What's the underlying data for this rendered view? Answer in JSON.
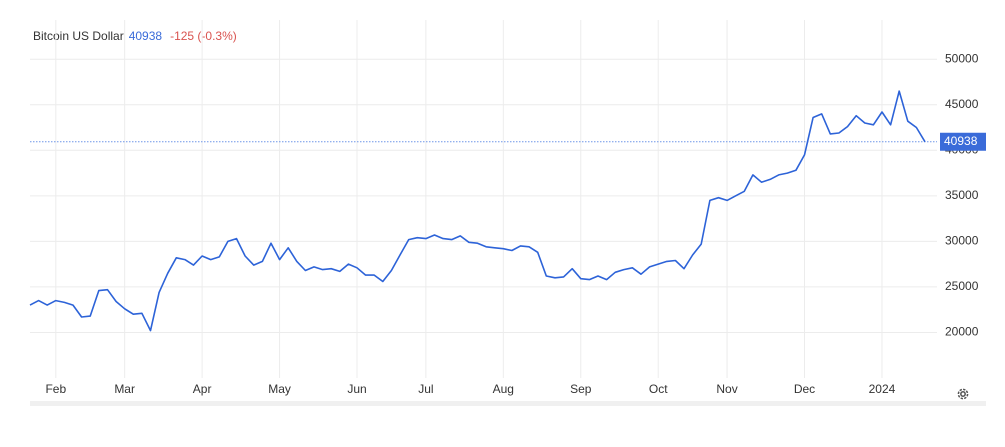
{
  "chart_data": {
    "type": "line",
    "title": "Bitcoin US Dollar",
    "change": "-125 (-0.3%)",
    "categories": [
      null,
      null,
      null,
      "Feb",
      null,
      null,
      null,
      null,
      null,
      null,
      null,
      "Mar",
      null,
      null,
      null,
      null,
      null,
      null,
      null,
      null,
      "Apr",
      null,
      null,
      null,
      null,
      null,
      null,
      null,
      null,
      "May",
      null,
      null,
      null,
      null,
      null,
      null,
      null,
      null,
      "Jun",
      null,
      null,
      null,
      null,
      null,
      null,
      null,
      "Jul",
      null,
      null,
      null,
      null,
      null,
      null,
      null,
      null,
      "Aug",
      null,
      null,
      null,
      null,
      null,
      null,
      null,
      null,
      "Sep",
      null,
      null,
      null,
      null,
      null,
      null,
      null,
      null,
      "Oct",
      null,
      null,
      null,
      null,
      null,
      null,
      null,
      "Nov",
      null,
      null,
      null,
      null,
      null,
      null,
      null,
      null,
      "Dec",
      null,
      null,
      null,
      null,
      null,
      null,
      null,
      null,
      "2024",
      null,
      null,
      null,
      null,
      null
    ],
    "values": [
      23000,
      23500,
      23000,
      23500,
      23300,
      23000,
      21700,
      21800,
      24600,
      24700,
      23400,
      22600,
      22000,
      22100,
      20200,
      24400,
      26500,
      28200,
      28000,
      27400,
      28400,
      28000,
      28300,
      30000,
      30300,
      28400,
      27400,
      27800,
      29800,
      28000,
      29300,
      27800,
      26800,
      27200,
      26900,
      27000,
      26700,
      27500,
      27100,
      26300,
      26300,
      25600,
      26800,
      28500,
      30200,
      30400,
      30300,
      30700,
      30300,
      30200,
      30600,
      29900,
      29800,
      29400,
      29300,
      29200,
      29000,
      29500,
      29400,
      28800,
      26200,
      26000,
      26100,
      27000,
      25900,
      25800,
      26200,
      25800,
      26600,
      26900,
      27100,
      26400,
      27200,
      27500,
      27800,
      27900,
      27000,
      28500,
      29700,
      34500,
      34800,
      34500,
      35000,
      35500,
      37300,
      36500,
      36800,
      37300,
      37500,
      37800,
      39500,
      43600,
      44000,
      41800,
      41900,
      42600,
      43800,
      43000,
      42800,
      44200,
      42800,
      46500,
      43200,
      42500,
      40938
    ],
    "color": "#2d63d8",
    "ylim": [
      15000,
      52000
    ],
    "yticks": [
      20000,
      25000,
      30000,
      35000,
      40000,
      45000,
      50000
    ],
    "grid": true
  }
}
